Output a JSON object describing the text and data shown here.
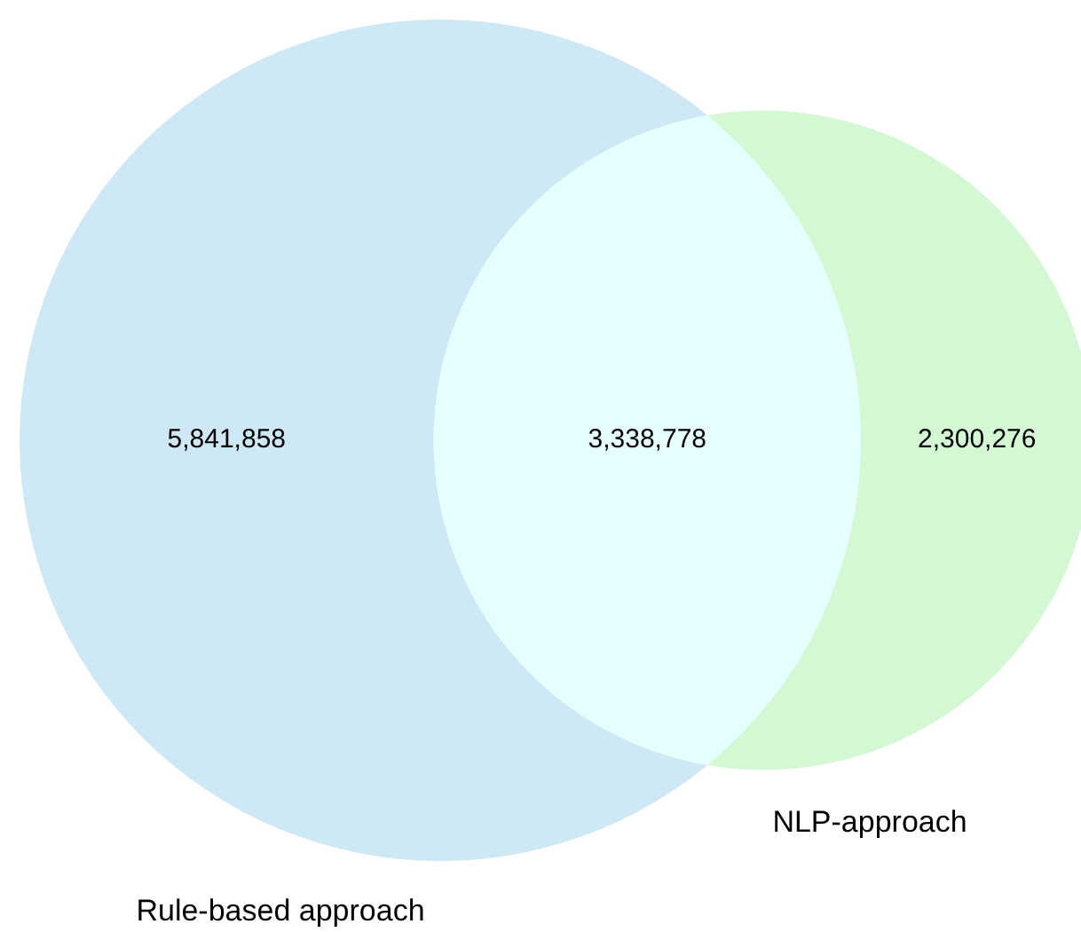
{
  "chart_data": {
    "type": "other",
    "categories": [
      null,
      null,
      null
    ],
    "values": [
      5841858,
      3338778,
      2300276
    ],
    "colors": [
      "#cfe8f5",
      "#e6feff",
      "#d3f8d3"
    ],
    "value_labels": [
      "5,841,858",
      "3,338,778",
      "2,300,276"
    ],
    "annotations": [
      "Rule-based approach",
      "NLP-approach"
    ]
  }
}
